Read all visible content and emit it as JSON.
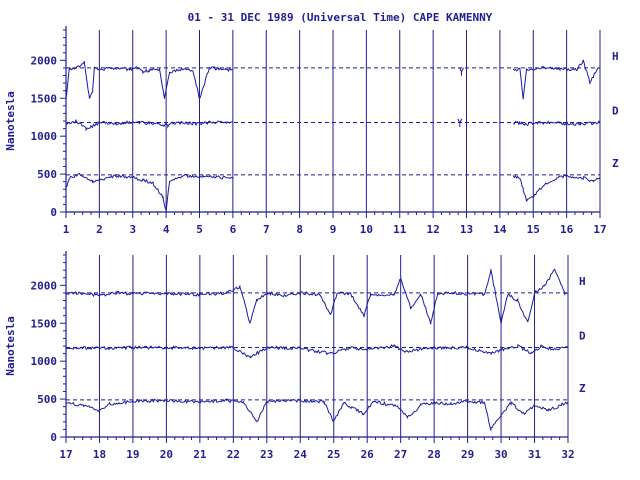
{
  "title": "01 - 31 DEC 1989 (Universal Time) CAPE KAMENNY",
  "colors": {
    "ink": "#1f1f8f",
    "trace": "#1a1aa6",
    "background": "#ffffff"
  },
  "chart_data": [
    {
      "type": "line",
      "ylabel": "Nanotesla",
      "xlabel": "",
      "xlim": [
        1,
        17
      ],
      "ylim": [
        0,
        2400
      ],
      "x_ticks": [
        "1",
        "2",
        "3",
        "4",
        "5",
        "6",
        "7",
        "8",
        "9",
        "10",
        "11",
        "12",
        "13",
        "14",
        "15",
        "16",
        "17"
      ],
      "y_ticks": [
        "0",
        "500",
        "1000",
        "1500",
        "2000"
      ],
      "grid": "vertical day lines",
      "baselines": [
        {
          "name": "H",
          "value": 1900
        },
        {
          "name": "D",
          "value": 1180
        },
        {
          "name": "Z",
          "value": 490
        }
      ],
      "data_gaps": [
        [
          6.0,
          14.4
        ]
      ],
      "isolated_marks": [
        {
          "channel": "H",
          "x": 12.85,
          "value": 1850
        },
        {
          "channel": "D",
          "x": 12.8,
          "value": 1175
        }
      ],
      "series": [
        {
          "name": "H",
          "points": [
            [
              1.0,
              1500
            ],
            [
              1.1,
              1880
            ],
            [
              1.4,
              1920
            ],
            [
              1.55,
              1980
            ],
            [
              1.7,
              1500
            ],
            [
              1.8,
              1600
            ],
            [
              1.85,
              1900
            ],
            [
              2.0,
              1880
            ],
            [
              2.5,
              1900
            ],
            [
              2.9,
              1880
            ],
            [
              3.1,
              1900
            ],
            [
              3.3,
              1850
            ],
            [
              3.5,
              1870
            ],
            [
              3.8,
              1880
            ],
            [
              3.95,
              1500
            ],
            [
              4.1,
              1850
            ],
            [
              4.5,
              1880
            ],
            [
              4.8,
              1870
            ],
            [
              5.0,
              1500
            ],
            [
              5.3,
              1900
            ],
            [
              5.8,
              1880
            ],
            [
              6.0,
              1870
            ],
            [
              14.4,
              1880
            ],
            [
              14.6,
              1880
            ],
            [
              14.7,
              1500
            ],
            [
              14.8,
              1880
            ],
            [
              15.3,
              1900
            ],
            [
              15.8,
              1890
            ],
            [
              16.3,
              1880
            ],
            [
              16.5,
              2000
            ],
            [
              16.7,
              1700
            ],
            [
              16.9,
              1880
            ],
            [
              17.0,
              1890
            ]
          ]
        },
        {
          "name": "D",
          "points": [
            [
              1.0,
              1150
            ],
            [
              1.3,
              1200
            ],
            [
              1.6,
              1100
            ],
            [
              1.9,
              1150
            ],
            [
              2.0,
              1180
            ],
            [
              2.5,
              1170
            ],
            [
              2.9,
              1180
            ],
            [
              3.2,
              1180
            ],
            [
              3.5,
              1170
            ],
            [
              3.9,
              1150
            ],
            [
              4.05,
              1140
            ],
            [
              4.2,
              1170
            ],
            [
              4.6,
              1175
            ],
            [
              4.9,
              1160
            ],
            [
              5.2,
              1180
            ],
            [
              5.8,
              1180
            ],
            [
              6.0,
              1180
            ],
            [
              14.4,
              1180
            ],
            [
              14.6,
              1175
            ],
            [
              14.8,
              1160
            ],
            [
              15.2,
              1180
            ],
            [
              15.8,
              1170
            ],
            [
              16.4,
              1160
            ],
            [
              16.8,
              1170
            ],
            [
              17.0,
              1180
            ]
          ]
        },
        {
          "name": "Z",
          "points": [
            [
              1.0,
              300
            ],
            [
              1.1,
              450
            ],
            [
              1.4,
              500
            ],
            [
              1.8,
              400
            ],
            [
              2.0,
              420
            ],
            [
              2.5,
              480
            ],
            [
              3.0,
              450
            ],
            [
              3.3,
              420
            ],
            [
              3.6,
              380
            ],
            [
              3.9,
              200
            ],
            [
              4.0,
              0
            ],
            [
              4.1,
              400
            ],
            [
              4.5,
              480
            ],
            [
              4.9,
              470
            ],
            [
              5.1,
              480
            ],
            [
              5.5,
              460
            ],
            [
              6.0,
              450
            ],
            [
              14.4,
              480
            ],
            [
              14.6,
              450
            ],
            [
              14.7,
              300
            ],
            [
              14.8,
              150
            ],
            [
              15.0,
              200
            ],
            [
              15.3,
              350
            ],
            [
              15.7,
              450
            ],
            [
              16.0,
              480
            ],
            [
              16.5,
              450
            ],
            [
              16.8,
              400
            ],
            [
              17.0,
              450
            ]
          ]
        }
      ]
    },
    {
      "type": "line",
      "ylabel": "Nanotesla",
      "xlabel": "",
      "xlim": [
        17,
        32
      ],
      "ylim": [
        0,
        2400
      ],
      "x_ticks": [
        "17",
        "18",
        "19",
        "20",
        "21",
        "22",
        "23",
        "24",
        "25",
        "26",
        "27",
        "28",
        "29",
        "30",
        "31",
        "32"
      ],
      "y_ticks": [
        "0",
        "500",
        "1000",
        "1500",
        "2000"
      ],
      "grid": "vertical day lines",
      "baselines": [
        {
          "name": "H",
          "value": 1900
        },
        {
          "name": "D",
          "value": 1180
        },
        {
          "name": "Z",
          "value": 490
        }
      ],
      "data_gaps": [],
      "isolated_marks": [],
      "series": [
        {
          "name": "H",
          "points": [
            [
              17.0,
              1900
            ],
            [
              17.5,
              1890
            ],
            [
              18.0,
              1870
            ],
            [
              18.5,
              1900
            ],
            [
              19.0,
              1890
            ],
            [
              20.0,
              1890
            ],
            [
              21.0,
              1880
            ],
            [
              21.8,
              1900
            ],
            [
              22.2,
              1980
            ],
            [
              22.5,
              1500
            ],
            [
              22.7,
              1800
            ],
            [
              23.0,
              1900
            ],
            [
              23.5,
              1870
            ],
            [
              24.0,
              1900
            ],
            [
              24.6,
              1880
            ],
            [
              24.9,
              1600
            ],
            [
              25.1,
              1890
            ],
            [
              25.5,
              1890
            ],
            [
              25.9,
              1600
            ],
            [
              26.1,
              1880
            ],
            [
              26.8,
              1880
            ],
            [
              27.0,
              2100
            ],
            [
              27.3,
              1700
            ],
            [
              27.6,
              1880
            ],
            [
              27.9,
              1500
            ],
            [
              28.1,
              1890
            ],
            [
              28.6,
              1900
            ],
            [
              29.0,
              1890
            ],
            [
              29.5,
              1880
            ],
            [
              29.7,
              2200
            ],
            [
              30.0,
              1500
            ],
            [
              30.2,
              1880
            ],
            [
              30.5,
              1800
            ],
            [
              30.8,
              1500
            ],
            [
              31.0,
              1900
            ],
            [
              31.3,
              2000
            ],
            [
              31.6,
              2200
            ],
            [
              31.9,
              1900
            ],
            [
              32.0,
              1900
            ]
          ]
        },
        {
          "name": "D",
          "points": [
            [
              17.0,
              1180
            ],
            [
              18.0,
              1170
            ],
            [
              19.0,
              1180
            ],
            [
              20.0,
              1180
            ],
            [
              21.0,
              1170
            ],
            [
              22.0,
              1180
            ],
            [
              22.5,
              1050
            ],
            [
              23.0,
              1180
            ],
            [
              24.0,
              1170
            ],
            [
              24.9,
              1100
            ],
            [
              25.5,
              1180
            ],
            [
              26.0,
              1150
            ],
            [
              26.8,
              1200
            ],
            [
              27.2,
              1120
            ],
            [
              27.8,
              1180
            ],
            [
              28.3,
              1170
            ],
            [
              29.0,
              1180
            ],
            [
              29.7,
              1100
            ],
            [
              30.0,
              1150
            ],
            [
              30.5,
              1200
            ],
            [
              30.9,
              1100
            ],
            [
              31.2,
              1200
            ],
            [
              31.6,
              1150
            ],
            [
              32.0,
              1180
            ]
          ]
        },
        {
          "name": "Z",
          "points": [
            [
              17.0,
              450
            ],
            [
              17.5,
              420
            ],
            [
              18.0,
              350
            ],
            [
              18.3,
              430
            ],
            [
              19.0,
              470
            ],
            [
              20.0,
              480
            ],
            [
              21.0,
              460
            ],
            [
              21.8,
              480
            ],
            [
              22.3,
              450
            ],
            [
              22.7,
              200
            ],
            [
              23.0,
              470
            ],
            [
              24.0,
              480
            ],
            [
              24.7,
              470
            ],
            [
              25.0,
              200
            ],
            [
              25.3,
              450
            ],
            [
              25.9,
              300
            ],
            [
              26.2,
              470
            ],
            [
              26.9,
              400
            ],
            [
              27.2,
              250
            ],
            [
              27.6,
              420
            ],
            [
              28.0,
              450
            ],
            [
              28.5,
              440
            ],
            [
              29.0,
              470
            ],
            [
              29.5,
              450
            ],
            [
              29.7,
              100
            ],
            [
              30.0,
              300
            ],
            [
              30.3,
              450
            ],
            [
              30.7,
              300
            ],
            [
              31.0,
              420
            ],
            [
              31.4,
              350
            ],
            [
              31.8,
              420
            ],
            [
              32.0,
              460
            ]
          ]
        }
      ]
    }
  ]
}
